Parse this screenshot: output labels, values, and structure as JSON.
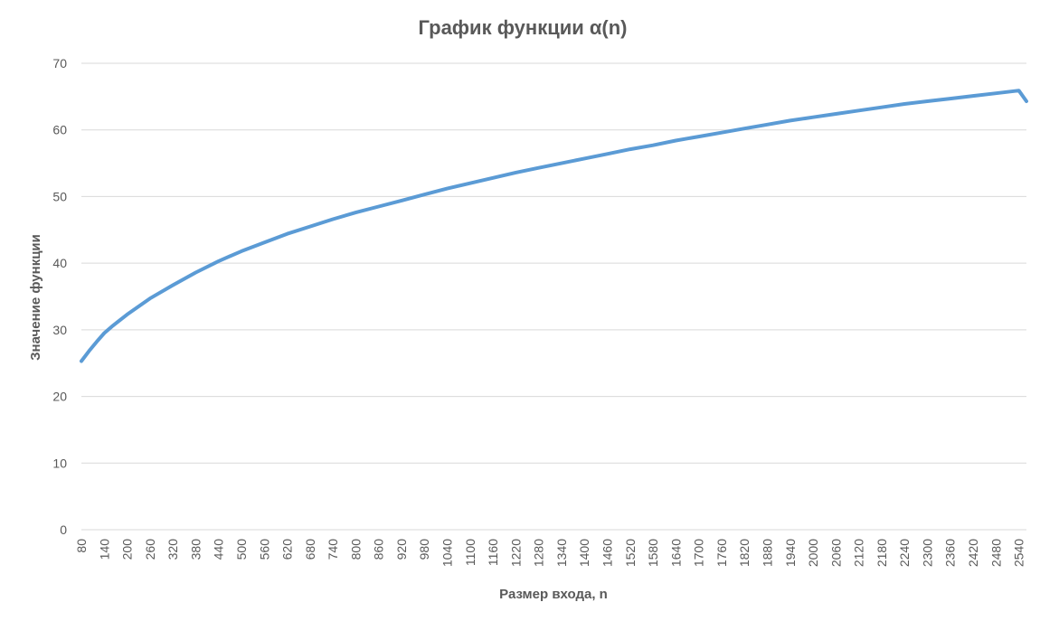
{
  "chart_data": {
    "type": "line",
    "title": "График функции α(n)",
    "xlabel": "Размер входа, n",
    "ylabel": "Значение функции",
    "ylim": [
      0,
      70
    ],
    "yticks": [
      0,
      10,
      20,
      30,
      40,
      50,
      60,
      70
    ],
    "xticks": [
      80,
      140,
      200,
      260,
      320,
      380,
      440,
      500,
      560,
      620,
      680,
      740,
      800,
      860,
      920,
      980,
      1040,
      1100,
      1160,
      1220,
      1280,
      1340,
      1400,
      1460,
      1520,
      1580,
      1640,
      1700,
      1760,
      1820,
      1880,
      1940,
      2000,
      2060,
      2120,
      2180,
      2240,
      2300,
      2360,
      2420,
      2480,
      2540
    ],
    "xlim": [
      80,
      2560
    ],
    "grid": "horizontal",
    "legend": "none",
    "series": [
      {
        "color": "#5b9bd5",
        "x": [
          80,
          100,
          120,
          140,
          160,
          200,
          260,
          320,
          380,
          440,
          500,
          560,
          620,
          680,
          740,
          800,
          860,
          920,
          980,
          1040,
          1100,
          1160,
          1220,
          1280,
          1340,
          1400,
          1460,
          1520,
          1580,
          1640,
          1700,
          1760,
          1820,
          1880,
          1940,
          2000,
          2060,
          2120,
          2180,
          2240,
          2300,
          2360,
          2420,
          2480,
          2540,
          2560
        ],
        "y": [
          25.3,
          26.8,
          28.2,
          29.5,
          30.5,
          32.3,
          34.7,
          36.7,
          38.6,
          40.3,
          41.8,
          43.1,
          44.4,
          45.5,
          46.6,
          47.6,
          48.5,
          49.4,
          50.3,
          51.2,
          52.0,
          52.8,
          53.6,
          54.3,
          55.0,
          55.7,
          56.4,
          57.1,
          57.7,
          58.4,
          59.0,
          59.6,
          60.2,
          60.8,
          61.4,
          61.9,
          62.4,
          62.9,
          63.4,
          63.9,
          64.3,
          64.7,
          65.1,
          65.5,
          65.9,
          64.3
        ]
      }
    ]
  }
}
